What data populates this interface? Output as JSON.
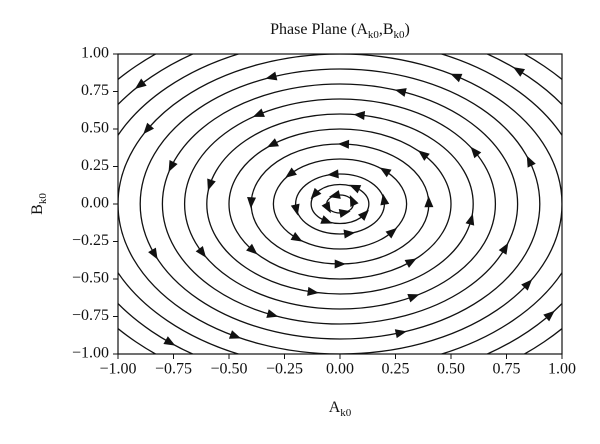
{
  "chart_data": {
    "type": "streamplot",
    "title_parts": [
      "Phase Plane (A",
      "k0",
      ",B",
      "k0",
      ")"
    ],
    "xlabel_parts": [
      "A",
      "k0"
    ],
    "ylabel_parts": [
      "B",
      "k0"
    ],
    "xlim": [
      -1,
      1
    ],
    "ylim": [
      -1,
      1
    ],
    "xticks": [
      {
        "value": -1,
        "label": "−1.00"
      },
      {
        "value": -0.75,
        "label": "−0.75"
      },
      {
        "value": -0.5,
        "label": "−0.50"
      },
      {
        "value": -0.25,
        "label": "−0.25"
      },
      {
        "value": 0,
        "label": "0.00"
      },
      {
        "value": 0.25,
        "label": "0.25"
      },
      {
        "value": 0.5,
        "label": "0.50"
      },
      {
        "value": 0.75,
        "label": "0.75"
      },
      {
        "value": 1,
        "label": "1.00"
      }
    ],
    "yticks": [
      {
        "value": -1,
        "label": "−1.00"
      },
      {
        "value": -0.75,
        "label": "−0.75"
      },
      {
        "value": -0.5,
        "label": "−0.50"
      },
      {
        "value": -0.25,
        "label": "−0.25"
      },
      {
        "value": 0,
        "label": "0.00"
      },
      {
        "value": 0.25,
        "label": "0.25"
      },
      {
        "value": 0.5,
        "label": "0.50"
      },
      {
        "value": 0.75,
        "label": "0.75"
      },
      {
        "value": 1,
        "label": "1.00"
      }
    ],
    "radii": [
      0.06,
      0.13,
      0.2,
      0.3,
      0.4,
      0.5,
      0.6,
      0.7,
      0.8,
      0.9,
      1.0,
      1.1,
      1.2,
      1.3
    ],
    "direction": "counterclockwise",
    "color": "#111111"
  }
}
